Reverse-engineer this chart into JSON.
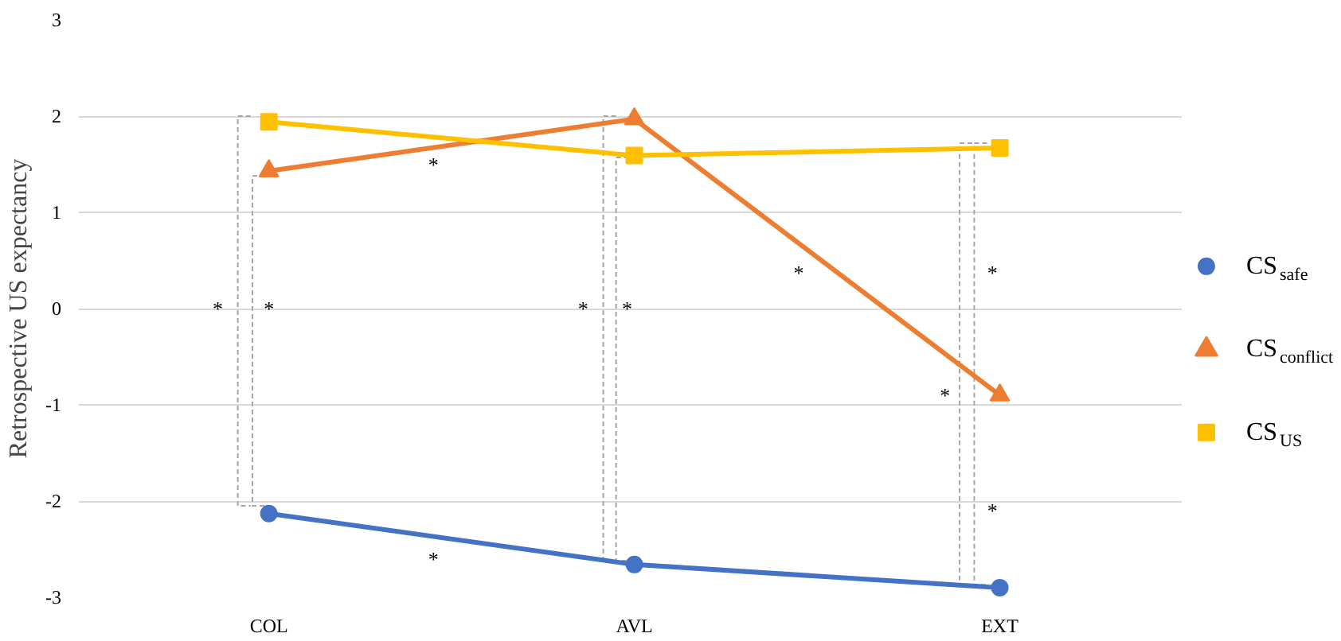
{
  "chart_data": {
    "type": "line",
    "ylabel": "Retrospective US expectancy",
    "categories": [
      "COL",
      "AVL",
      "EXT"
    ],
    "series": [
      {
        "name": "CS$_{safe}$",
        "color": "#4472c4",
        "marker": "circle",
        "values": [
          -2.13,
          -2.66,
          -2.9
        ]
      },
      {
        "name": "CS$_{conflict}$",
        "color": "#ed7d31",
        "marker": "triangle",
        "values": [
          1.43,
          1.97,
          -0.9
        ]
      },
      {
        "name": "CS$_{US}$",
        "color": "#ffc000",
        "marker": "square",
        "values": [
          1.94,
          1.59,
          1.67
        ]
      }
    ],
    "ylim": [
      -3,
      3
    ],
    "yticks": [
      -3,
      -2,
      -1,
      0,
      1,
      2,
      3
    ],
    "grid": "y",
    "legend": "right",
    "line_style": "solid",
    "annotations": [
      "*",
      "*",
      "*",
      "*",
      "*",
      "*",
      "*",
      "*",
      "*",
      "*"
    ]
  }
}
